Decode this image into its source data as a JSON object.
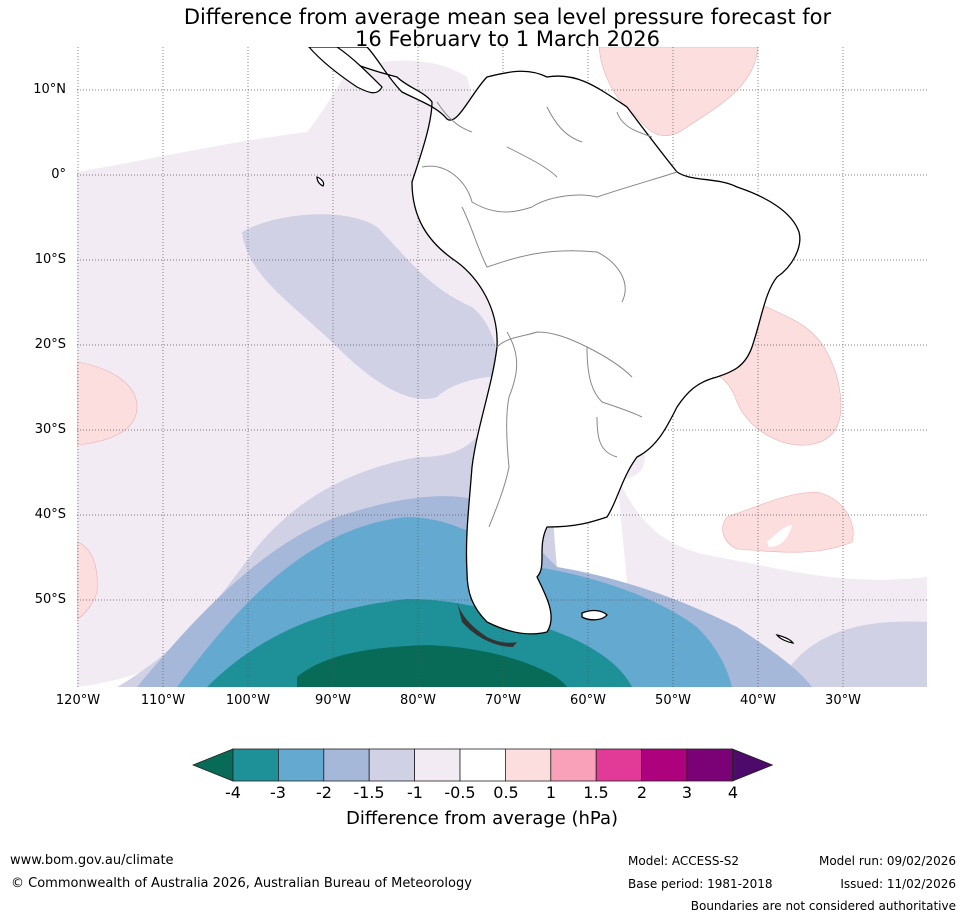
{
  "title": {
    "line1": "Difference from average mean sea level pressure forecast for",
    "line2": "16 February to 1 March 2026"
  },
  "axes": {
    "latitude_labels": [
      "10°N",
      "0°",
      "10°S",
      "20°S",
      "30°S",
      "40°S",
      "50°S"
    ],
    "longitude_labels": [
      "120°W",
      "110°W",
      "100°W",
      "90°W",
      "80°W",
      "70°W",
      "60°W",
      "50°W",
      "40°W",
      "30°W"
    ]
  },
  "colorbar": {
    "title": "Difference from average (hPa)",
    "tick_labels": [
      "-4",
      "-3",
      "-2",
      "-1.5",
      "-1",
      "-0.5",
      "0.5",
      "1",
      "1.5",
      "2",
      "3",
      "4"
    ],
    "colors": [
      "#086b57",
      "#1e9198",
      "#64a9cf",
      "#a5b8d9",
      "#d1d1e6",
      "#f3ebf4",
      "#ffffff",
      "#fddedf",
      "#f9a1b9",
      "#e13a97",
      "#ad017e",
      "#7b0176",
      "#4d0a6b"
    ]
  },
  "footer": {
    "website": "www.bom.gov.au/climate",
    "copyright": "© Commonwealth of Australia 2026, Australian Bureau of Meteorology",
    "model": "Model: ACCESS-S2",
    "model_run": "Model run: 09/02/2026",
    "base_period": "Base period: 1981-2018",
    "issued": "Issued: 11/02/2026",
    "disclaimer": "Boundaries are not considered authoritative"
  }
}
